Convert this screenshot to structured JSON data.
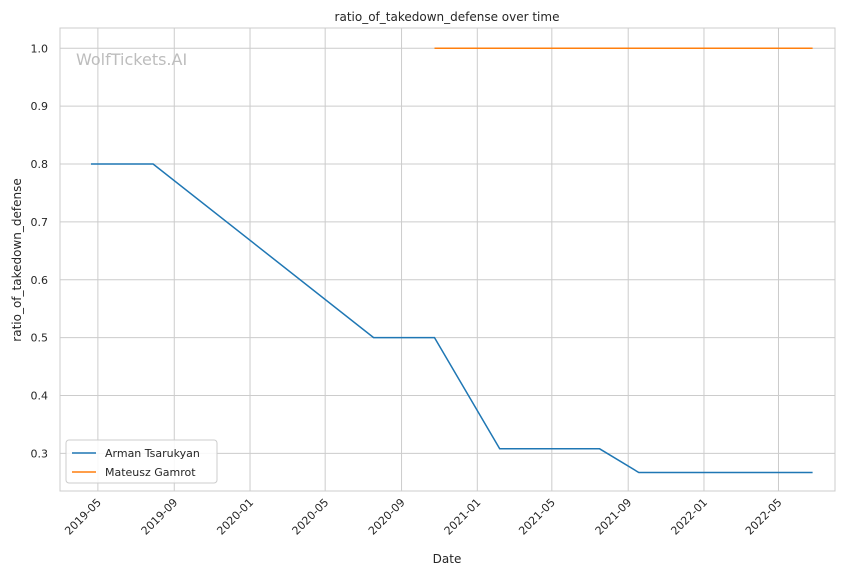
{
  "chart_data": {
    "type": "line",
    "title": "ratio_of_takedown_defense over time",
    "xlabel": "Date",
    "ylabel": "ratio_of_takedown_defense",
    "watermark": "WolfTickets.AI",
    "x_ticks": [
      "2019-05",
      "2019-09",
      "2020-01",
      "2020-05",
      "2020-09",
      "2021-01",
      "2021-05",
      "2021-09",
      "2022-01",
      "2022-05"
    ],
    "y_ticks": [
      0.3,
      0.4,
      0.5,
      0.6,
      0.7,
      0.8,
      0.9,
      1.0
    ],
    "ylim": [
      0.235,
      1.035
    ],
    "xlim": [
      "2019-03-01",
      "2022-07-31"
    ],
    "grid": true,
    "legend_position": "lower-left",
    "series": [
      {
        "name": "Arman Tsarukyan",
        "color": "#1f77b4",
        "points": [
          {
            "x": "2019-04-20",
            "y": 0.8
          },
          {
            "x": "2019-07-29",
            "y": 0.8
          },
          {
            "x": "2020-07-18",
            "y": 0.5
          },
          {
            "x": "2020-10-24",
            "y": 0.5
          },
          {
            "x": "2021-02-06",
            "y": 0.308
          },
          {
            "x": "2021-07-17",
            "y": 0.308
          },
          {
            "x": "2021-09-18",
            "y": 0.267
          },
          {
            "x": "2022-06-25",
            "y": 0.267
          }
        ]
      },
      {
        "name": "Mateusz Gamrot",
        "color": "#ff7f0e",
        "points": [
          {
            "x": "2020-10-24",
            "y": 1.0
          },
          {
            "x": "2022-06-25",
            "y": 1.0
          }
        ]
      }
    ]
  }
}
